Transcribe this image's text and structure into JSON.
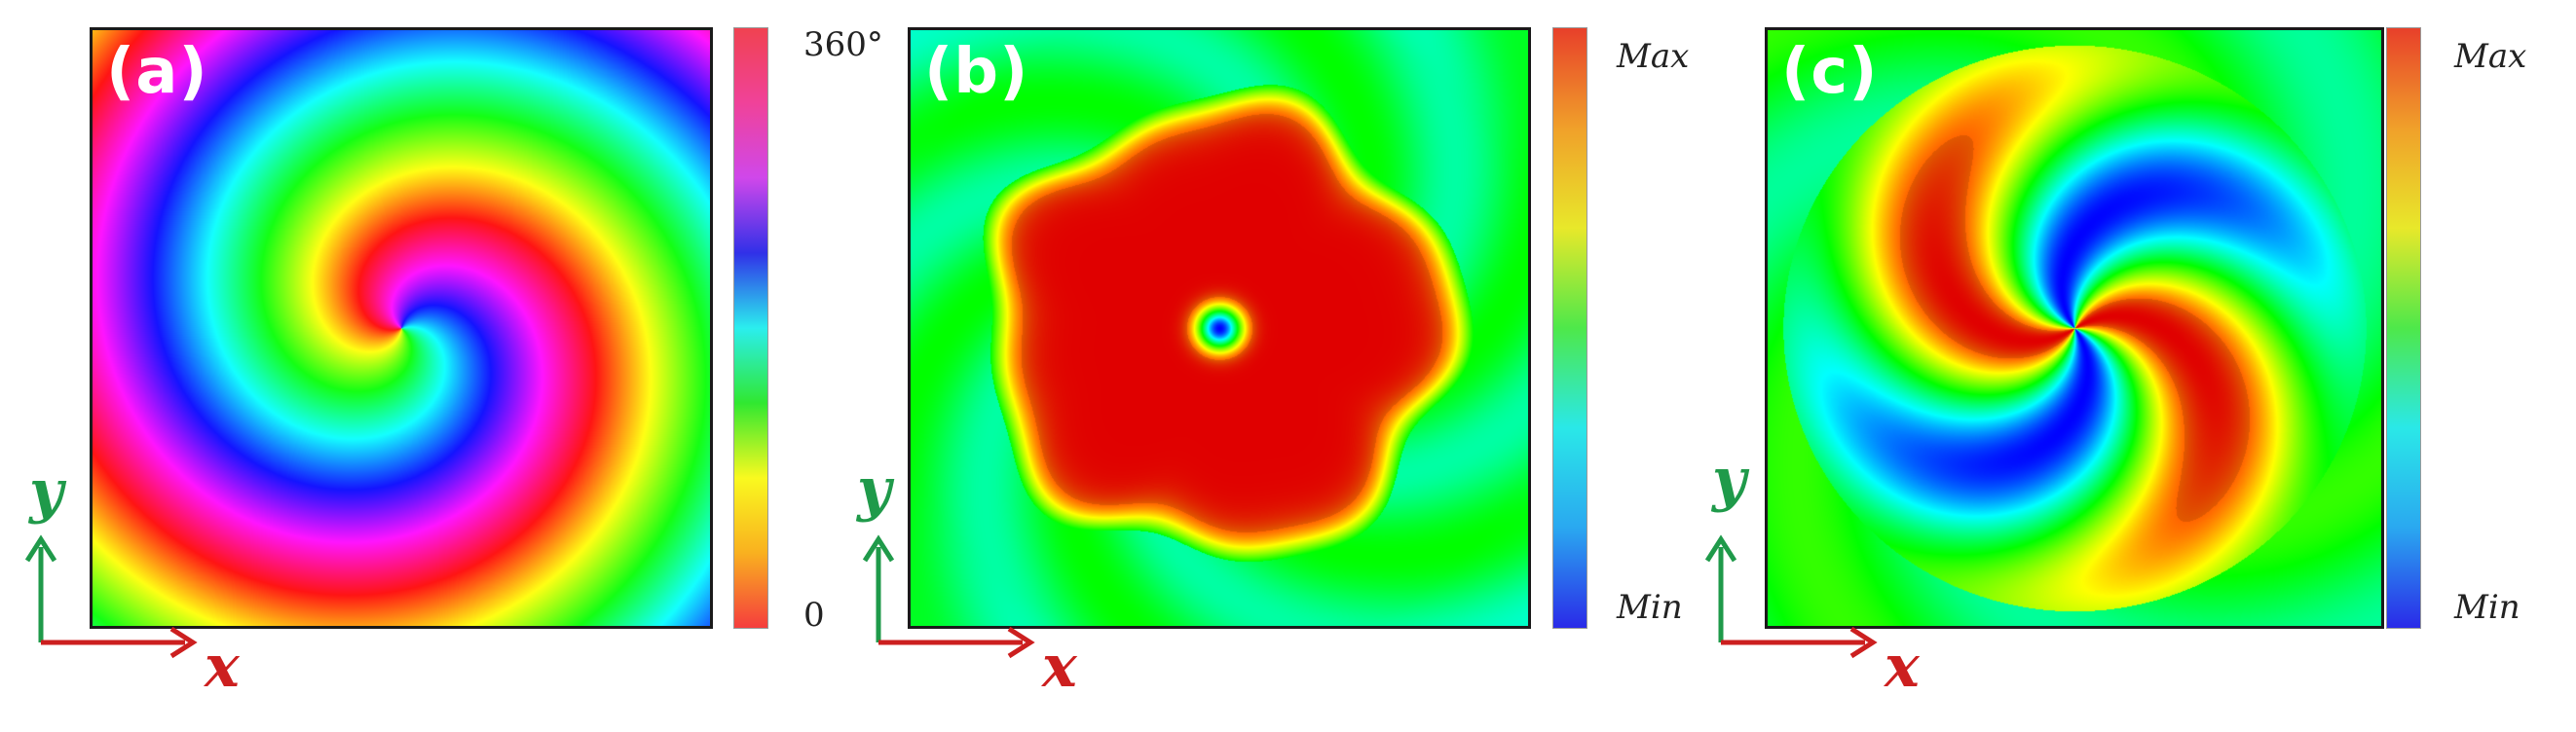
{
  "panels": [
    {
      "label": "(a)",
      "type": "phase",
      "colorbar": {
        "max_label": "360°",
        "min_label": "0"
      }
    },
    {
      "label": "(b)",
      "type": "intensity",
      "colorbar": {
        "max_label": "Max",
        "min_label": "Min"
      }
    },
    {
      "label": "(c)",
      "type": "interference",
      "colorbar": {
        "max_label": "Max",
        "min_label": "Min"
      }
    }
  ],
  "axes": {
    "x_label": "x",
    "y_label": "y",
    "x_color": "#cc1f1f",
    "y_color": "#1f9a4a"
  },
  "colors": {
    "intensity_high": "#e0140c",
    "intensity_low": "#2020e0",
    "frame": "#1a1a1a"
  }
}
